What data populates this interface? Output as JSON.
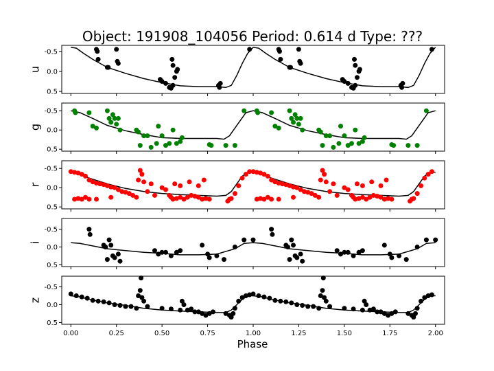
{
  "figure": {
    "title": "Object: 191908_104056    Period: 0.614 d    Type: ???"
  },
  "chart_data": {
    "type": "scatter",
    "title": "Object: 191908_104056    Period: 0.614 d    Type: ???",
    "xlabel": "Phase",
    "x_ticks": [
      "0.00",
      "0.25",
      "0.50",
      "0.75",
      "1.00",
      "1.25",
      "1.50",
      "1.75",
      "2.00"
    ],
    "xlim": [
      -0.05,
      2.05
    ],
    "y_inverted": true,
    "panels": [
      {
        "band": "u",
        "ylabel": "u",
        "color": "#000000",
        "ylim": [
          0.55,
          -0.65
        ],
        "y_ticks": [
          "-0.5",
          "0.0",
          "0.5"
        ],
        "y_tick_values": [
          -0.5,
          0.0,
          0.5
        ],
        "model": [
          [
            0.0,
            -0.6
          ],
          [
            0.03,
            -0.58
          ],
          [
            0.07,
            -0.45
          ],
          [
            0.12,
            -0.3
          ],
          [
            0.2,
            -0.1
          ],
          [
            0.3,
            0.05
          ],
          [
            0.4,
            0.18
          ],
          [
            0.5,
            0.28
          ],
          [
            0.6,
            0.36
          ],
          [
            0.7,
            0.38
          ],
          [
            0.8,
            0.38
          ],
          [
            0.85,
            0.4
          ],
          [
            0.88,
            0.35
          ],
          [
            0.91,
            0.1
          ],
          [
            0.94,
            -0.2
          ],
          [
            0.97,
            -0.45
          ],
          [
            1.0,
            -0.6
          ]
        ],
        "points": [
          [
            0.14,
            -0.55
          ],
          [
            0.145,
            -0.5
          ],
          [
            0.15,
            -0.3
          ],
          [
            0.2,
            -0.1
          ],
          [
            0.205,
            -0.1
          ],
          [
            0.25,
            -0.55
          ],
          [
            0.255,
            -0.25
          ],
          [
            0.26,
            -0.2
          ],
          [
            0.49,
            0.2
          ],
          [
            0.5,
            0.25
          ],
          [
            0.52,
            0.3
          ],
          [
            0.54,
            0.4
          ],
          [
            0.55,
            0.42
          ],
          [
            0.56,
            0.35
          ],
          [
            0.57,
            0.15
          ],
          [
            0.555,
            -0.3
          ],
          [
            0.56,
            -0.15
          ],
          [
            0.58,
            0.0
          ],
          [
            0.585,
            -0.05
          ],
          [
            0.81,
            0.35
          ],
          [
            0.815,
            0.4
          ],
          [
            0.82,
            0.3
          ],
          [
            0.98,
            -0.55
          ]
        ]
      },
      {
        "band": "g",
        "ylabel": "g",
        "color": "#008000",
        "ylim": [
          0.55,
          -0.7
        ],
        "y_ticks": [
          "-0.5",
          "0.0",
          "0.5"
        ],
        "y_tick_values": [
          -0.5,
          0.0,
          0.5
        ],
        "model": [
          [
            0.0,
            -0.5
          ],
          [
            0.05,
            -0.45
          ],
          [
            0.12,
            -0.3
          ],
          [
            0.2,
            -0.12
          ],
          [
            0.3,
            0.02
          ],
          [
            0.4,
            0.12
          ],
          [
            0.5,
            0.2
          ],
          [
            0.6,
            0.22
          ],
          [
            0.7,
            0.22
          ],
          [
            0.8,
            0.22
          ],
          [
            0.84,
            0.24
          ],
          [
            0.87,
            0.15
          ],
          [
            0.9,
            -0.05
          ],
          [
            0.93,
            -0.25
          ],
          [
            0.96,
            -0.45
          ],
          [
            1.0,
            -0.5
          ]
        ],
        "points": [
          [
            0.02,
            -0.5
          ],
          [
            0.025,
            -0.45
          ],
          [
            0.1,
            -0.45
          ],
          [
            0.12,
            -0.1
          ],
          [
            0.14,
            -0.05
          ],
          [
            0.2,
            -0.5
          ],
          [
            0.21,
            -0.3
          ],
          [
            0.22,
            -0.2
          ],
          [
            0.23,
            -0.4
          ],
          [
            0.24,
            -0.3
          ],
          [
            0.25,
            -0.15
          ],
          [
            0.26,
            -0.3
          ],
          [
            0.27,
            0.0
          ],
          [
            0.36,
            0.0
          ],
          [
            0.37,
            0.05
          ],
          [
            0.38,
            0.4
          ],
          [
            0.4,
            0.15
          ],
          [
            0.42,
            0.15
          ],
          [
            0.44,
            0.45
          ],
          [
            0.47,
            0.35
          ],
          [
            0.48,
            -0.1
          ],
          [
            0.5,
            0.15
          ],
          [
            0.52,
            0.4
          ],
          [
            0.54,
            0.35
          ],
          [
            0.56,
            0.0
          ],
          [
            0.58,
            0.35
          ],
          [
            0.6,
            0.3
          ],
          [
            0.61,
            0.2
          ],
          [
            0.76,
            0.38
          ],
          [
            0.77,
            0.4
          ],
          [
            0.85,
            0.4
          ],
          [
            0.9,
            0.4
          ],
          [
            0.95,
            -0.5
          ]
        ]
      },
      {
        "band": "r",
        "ylabel": "r",
        "color": "#ff0000",
        "ylim": [
          0.55,
          -0.7
        ],
        "y_ticks": [
          "-0.5",
          "0.0",
          "0.5"
        ],
        "y_tick_values": [
          -0.5,
          0.0,
          0.5
        ],
        "model": [
          [
            0.0,
            -0.4
          ],
          [
            0.05,
            -0.35
          ],
          [
            0.1,
            -0.25
          ],
          [
            0.2,
            -0.1
          ],
          [
            0.3,
            0.02
          ],
          [
            0.4,
            0.1
          ],
          [
            0.5,
            0.15
          ],
          [
            0.6,
            0.18
          ],
          [
            0.7,
            0.2
          ],
          [
            0.8,
            0.22
          ],
          [
            0.85,
            0.2
          ],
          [
            0.88,
            0.1
          ],
          [
            0.91,
            -0.1
          ],
          [
            0.94,
            -0.3
          ],
          [
            0.97,
            -0.4
          ],
          [
            1.0,
            -0.4
          ]
        ],
        "points": [
          [
            0.0,
            -0.42
          ],
          [
            0.02,
            -0.4
          ],
          [
            0.04,
            -0.38
          ],
          [
            0.06,
            -0.35
          ],
          [
            0.08,
            -0.3
          ],
          [
            0.1,
            -0.2
          ],
          [
            0.12,
            -0.15
          ],
          [
            0.14,
            -0.12
          ],
          [
            0.16,
            -0.1
          ],
          [
            0.18,
            -0.08
          ],
          [
            0.2,
            -0.05
          ],
          [
            0.22,
            -0.02
          ],
          [
            0.24,
            0.0
          ],
          [
            0.26,
            0.05
          ],
          [
            0.28,
            0.1
          ],
          [
            0.3,
            0.12
          ],
          [
            0.32,
            0.15
          ],
          [
            0.34,
            0.2
          ],
          [
            0.36,
            0.25
          ],
          [
            0.37,
            -0.2
          ],
          [
            0.38,
            -0.45
          ],
          [
            0.39,
            -0.35
          ],
          [
            0.4,
            -0.15
          ],
          [
            0.42,
            0.1
          ],
          [
            0.44,
            -0.1
          ],
          [
            0.46,
            0.2
          ],
          [
            0.5,
            0.0
          ],
          [
            0.52,
            0.05
          ],
          [
            0.54,
            0.2
          ],
          [
            0.55,
            0.25
          ],
          [
            0.56,
            0.3
          ],
          [
            0.58,
            0.28
          ],
          [
            0.6,
            0.25
          ],
          [
            0.62,
            0.3
          ],
          [
            0.64,
            0.25
          ],
          [
            0.66,
            0.2
          ],
          [
            0.68,
            0.22
          ],
          [
            0.7,
            0.25
          ],
          [
            0.72,
            0.3
          ],
          [
            0.74,
            0.28
          ],
          [
            0.76,
            0.3
          ],
          [
            0.02,
            0.3
          ],
          [
            0.04,
            0.28
          ],
          [
            0.06,
            0.3
          ],
          [
            0.08,
            0.25
          ],
          [
            0.1,
            0.3
          ],
          [
            0.14,
            0.3
          ],
          [
            0.22,
            0.25
          ],
          [
            0.57,
            -0.1
          ],
          [
            0.6,
            -0.05
          ],
          [
            0.65,
            -0.15
          ],
          [
            0.7,
            -0.05
          ],
          [
            0.73,
            -0.2
          ],
          [
            0.86,
            0.35
          ],
          [
            0.87,
            0.3
          ],
          [
            0.88,
            0.28
          ],
          [
            0.9,
            0.15
          ],
          [
            0.92,
            -0.05
          ],
          [
            0.94,
            -0.25
          ],
          [
            0.96,
            -0.35
          ],
          [
            0.98,
            -0.42
          ]
        ]
      },
      {
        "band": "i",
        "ylabel": "i",
        "color": "#000000",
        "ylim": [
          0.55,
          -0.8
        ],
        "y_ticks": [
          "-0.5",
          "0.0",
          "0.5"
        ],
        "y_tick_values": [
          -0.5,
          0.0,
          0.5
        ],
        "model": [
          [
            0.0,
            -0.12
          ],
          [
            0.05,
            -0.1
          ],
          [
            0.1,
            -0.05
          ],
          [
            0.2,
            0.05
          ],
          [
            0.3,
            0.1
          ],
          [
            0.4,
            0.15
          ],
          [
            0.5,
            0.18
          ],
          [
            0.6,
            0.22
          ],
          [
            0.7,
            0.22
          ],
          [
            0.8,
            0.2
          ],
          [
            0.9,
            0.05
          ],
          [
            0.95,
            -0.1
          ],
          [
            1.0,
            -0.12
          ]
        ],
        "points": [
          [
            0.1,
            -0.5
          ],
          [
            0.105,
            -0.35
          ],
          [
            0.18,
            -0.05
          ],
          [
            0.19,
            0.0
          ],
          [
            0.2,
            0.35
          ],
          [
            0.21,
            -0.2
          ],
          [
            0.22,
            -0.05
          ],
          [
            0.23,
            0.25
          ],
          [
            0.24,
            0.3
          ],
          [
            0.26,
            0.2
          ],
          [
            0.27,
            0.4
          ],
          [
            0.46,
            0.1
          ],
          [
            0.48,
            0.2
          ],
          [
            0.5,
            0.15
          ],
          [
            0.52,
            0.15
          ],
          [
            0.55,
            0.25
          ],
          [
            0.58,
            0.15
          ],
          [
            0.6,
            0.1
          ],
          [
            0.72,
            -0.05
          ],
          [
            0.75,
            0.2
          ],
          [
            0.76,
            0.3
          ],
          [
            0.8,
            0.25
          ],
          [
            0.84,
            0.35
          ],
          [
            0.9,
            0.0
          ],
          [
            0.95,
            -0.2
          ],
          [
            1.0,
            -0.2
          ]
        ]
      },
      {
        "band": "z",
        "ylabel": "z",
        "color": "#000000",
        "ylim": [
          0.55,
          -0.8
        ],
        "y_ticks": [
          "-0.5",
          "0.0",
          "0.5"
        ],
        "y_tick_values": [
          -0.5,
          0.0,
          0.5
        ],
        "model": [
          [
            0.0,
            -0.25
          ],
          [
            0.05,
            -0.22
          ],
          [
            0.1,
            -0.15
          ],
          [
            0.2,
            -0.05
          ],
          [
            0.3,
            0.02
          ],
          [
            0.4,
            0.1
          ],
          [
            0.5,
            0.15
          ],
          [
            0.6,
            0.18
          ],
          [
            0.7,
            0.2
          ],
          [
            0.8,
            0.22
          ],
          [
            0.85,
            0.22
          ],
          [
            0.88,
            0.15
          ],
          [
            0.91,
            0.0
          ],
          [
            0.94,
            -0.15
          ],
          [
            0.97,
            -0.25
          ],
          [
            1.0,
            -0.25
          ]
        ],
        "points": [
          [
            0.0,
            -0.3
          ],
          [
            0.03,
            -0.25
          ],
          [
            0.06,
            -0.22
          ],
          [
            0.09,
            -0.18
          ],
          [
            0.12,
            -0.12
          ],
          [
            0.15,
            -0.1
          ],
          [
            0.18,
            -0.08
          ],
          [
            0.21,
            -0.05
          ],
          [
            0.24,
            0.0
          ],
          [
            0.27,
            0.02
          ],
          [
            0.3,
            0.05
          ],
          [
            0.33,
            0.05
          ],
          [
            0.36,
            0.1
          ],
          [
            0.37,
            -0.25
          ],
          [
            0.38,
            -0.4
          ],
          [
            0.385,
            -0.75
          ],
          [
            0.39,
            -0.2
          ],
          [
            0.4,
            -0.1
          ],
          [
            0.42,
            0.05
          ],
          [
            0.5,
            0.1
          ],
          [
            0.55,
            0.12
          ],
          [
            0.6,
            0.15
          ],
          [
            0.61,
            -0.1
          ],
          [
            0.62,
            0.0
          ],
          [
            0.64,
            0.15
          ],
          [
            0.66,
            0.12
          ],
          [
            0.68,
            0.2
          ],
          [
            0.7,
            0.2
          ],
          [
            0.72,
            0.25
          ],
          [
            0.74,
            0.3
          ],
          [
            0.76,
            0.25
          ],
          [
            0.78,
            0.2
          ],
          [
            0.85,
            0.25
          ],
          [
            0.87,
            0.3
          ],
          [
            0.88,
            0.35
          ],
          [
            0.89,
            0.25
          ],
          [
            0.9,
            0.1
          ],
          [
            0.92,
            -0.1
          ],
          [
            0.94,
            -0.2
          ],
          [
            0.96,
            -0.25
          ],
          [
            0.98,
            -0.28
          ]
        ]
      }
    ]
  }
}
